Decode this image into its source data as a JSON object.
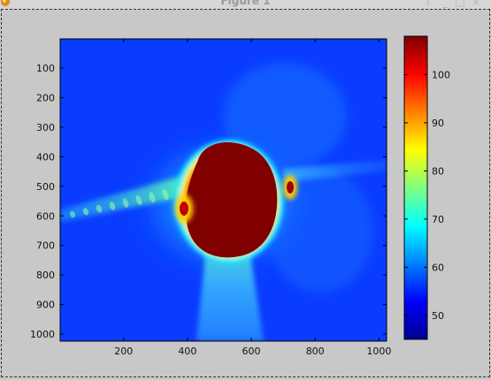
{
  "window": {
    "title": "Figure 1",
    "buttons": {
      "up_arrow": "↑",
      "minimize": "_",
      "maximize": "□",
      "close": "×"
    }
  },
  "chart_data": {
    "type": "heatmap",
    "title": "",
    "xlabel": "",
    "ylabel": "",
    "x_ticks": [
      200,
      400,
      600,
      800,
      1000
    ],
    "y_ticks": [
      100,
      200,
      300,
      400,
      500,
      600,
      700,
      800,
      900,
      1000
    ],
    "xlim": [
      1,
      1024
    ],
    "ylim": [
      1,
      1024
    ],
    "colormap": "jet",
    "colorbar": {
      "ticks": [
        50,
        60,
        70,
        80,
        90,
        100
      ],
      "range": [
        45,
        108
      ]
    },
    "features": [
      {
        "name": "saturated central spot",
        "x": 510,
        "y": 545,
        "value": 108
      },
      {
        "name": "bright side lobe",
        "x": 718,
        "y": 503,
        "value": 100
      },
      {
        "name": "streak toward bottom",
        "x": 555,
        "y": 900,
        "value": 68
      },
      {
        "name": "streak toward left",
        "x": 100,
        "y": 605,
        "value": 72
      }
    ],
    "background_value": 55
  }
}
